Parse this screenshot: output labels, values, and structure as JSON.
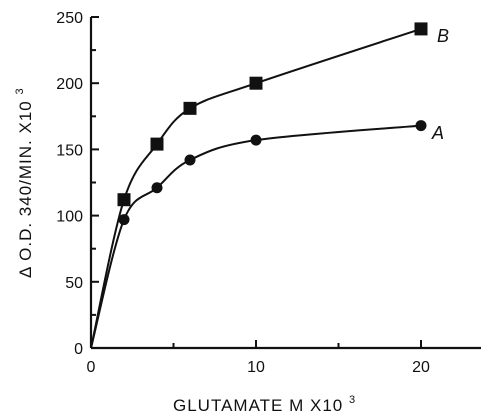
{
  "chart_data": {
    "type": "line",
    "title": "",
    "xlabel": "GLUTAMATE M X10",
    "xlabel_exponent": "3",
    "ylabel": "Δ O.D. 340/MIN. X10",
    "ylabel_exponent": "3",
    "xlim": [
      0,
      24
    ],
    "ylim": [
      0,
      250
    ],
    "x_ticks": [
      0,
      10,
      20
    ],
    "y_ticks": [
      0,
      50,
      100,
      150,
      200,
      250
    ],
    "grid": false,
    "legend": "inline labels at line ends",
    "series": [
      {
        "name": "B",
        "marker": "square",
        "x": [
          2,
          4,
          6,
          10,
          20
        ],
        "y": [
          112,
          154,
          181,
          200,
          241
        ]
      },
      {
        "name": "A",
        "marker": "circle",
        "x": [
          2,
          4,
          6,
          10,
          20
        ],
        "y": [
          97,
          121,
          142,
          157,
          168
        ]
      }
    ]
  }
}
